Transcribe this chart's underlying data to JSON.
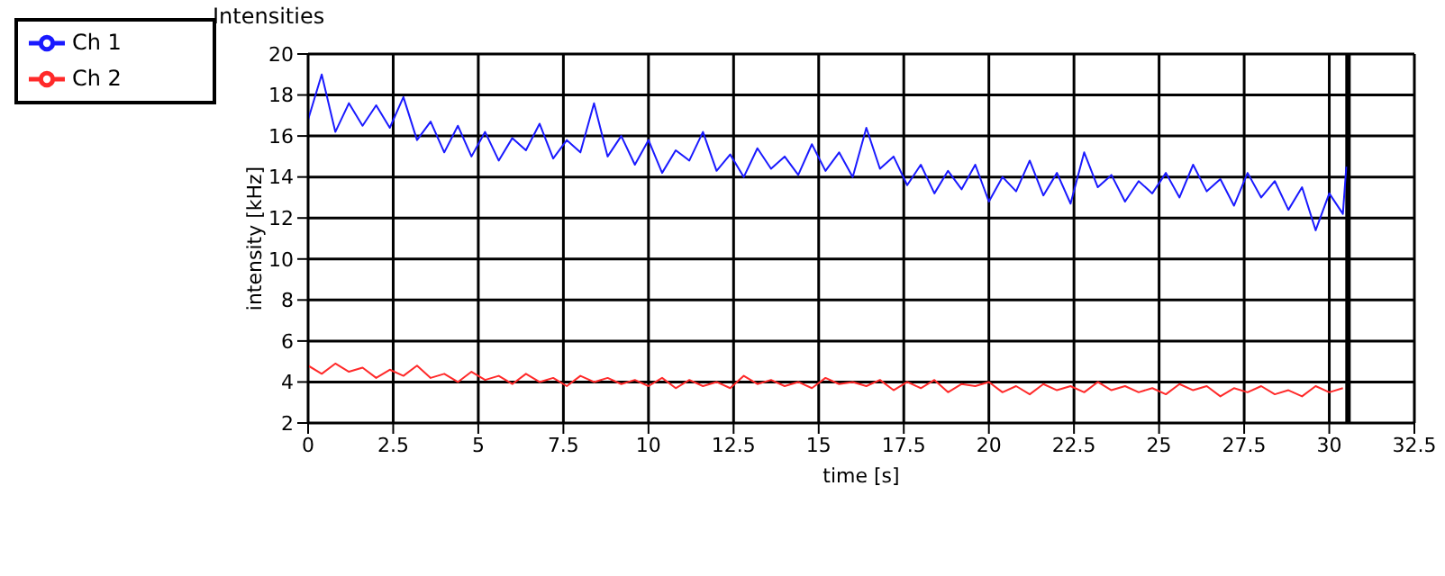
{
  "chart_data": {
    "type": "line",
    "title": "Intensities",
    "xlabel": "time [s]",
    "ylabel": "intensity [kHz]",
    "xlim": [
      0,
      32.5
    ],
    "xticks": [
      0,
      2.5,
      5,
      7.5,
      10,
      12.5,
      15,
      17.5,
      20,
      22.5,
      25,
      27.5,
      30,
      32.5
    ],
    "ylim": [
      2,
      20
    ],
    "yticks": [
      2,
      4,
      6,
      8,
      10,
      12,
      14,
      16,
      18,
      20
    ],
    "grid": true,
    "legend": "top left",
    "ref_lines": [
      {
        "axis": "x",
        "value": 30.55,
        "color": "#000000"
      }
    ],
    "series": [
      {
        "name": "Ch 1",
        "color": "#1a1aff",
        "x": [
          0,
          0.4,
          0.8,
          1.2,
          1.6,
          2,
          2.4,
          2.8,
          3.2,
          3.6,
          4,
          4.4,
          4.8,
          5.2,
          5.6,
          6,
          6.4,
          6.8,
          7.2,
          7.6,
          8,
          8.4,
          8.8,
          9.2,
          9.6,
          10,
          10.4,
          10.8,
          11.2,
          11.6,
          12,
          12.4,
          12.8,
          13.2,
          13.6,
          14,
          14.4,
          14.8,
          15.2,
          15.6,
          16,
          16.4,
          16.8,
          17.2,
          17.6,
          18,
          18.4,
          18.8,
          19.2,
          19.6,
          20,
          20.4,
          20.8,
          21.2,
          21.6,
          22,
          22.4,
          22.8,
          23.2,
          23.6,
          24,
          24.4,
          24.8,
          25.2,
          25.6,
          26,
          26.4,
          26.8,
          27.2,
          27.6,
          28,
          28.4,
          28.8,
          29.2,
          29.6,
          30,
          30.4,
          30.5
        ],
        "values": [
          16.8,
          19.0,
          16.2,
          17.6,
          16.5,
          17.5,
          16.4,
          17.9,
          15.8,
          16.7,
          15.2,
          16.5,
          15.0,
          16.2,
          14.8,
          15.9,
          15.3,
          16.6,
          14.9,
          15.8,
          15.2,
          17.6,
          15.0,
          16.0,
          14.6,
          15.8,
          14.2,
          15.3,
          14.8,
          16.2,
          14.3,
          15.1,
          14.0,
          15.4,
          14.4,
          15.0,
          14.1,
          15.6,
          14.3,
          15.2,
          14.0,
          16.4,
          14.4,
          15.0,
          13.6,
          14.6,
          13.2,
          14.3,
          13.4,
          14.6,
          12.8,
          14.0,
          13.3,
          14.8,
          13.1,
          14.2,
          12.7,
          15.2,
          13.5,
          14.1,
          12.8,
          13.8,
          13.2,
          14.2,
          13.0,
          14.6,
          13.3,
          13.9,
          12.6,
          14.2,
          13.0,
          13.8,
          12.4,
          13.5,
          11.4,
          13.2,
          12.2,
          14.5
        ]
      },
      {
        "name": "Ch 2",
        "color": "#ff2a2a",
        "x": [
          0,
          0.4,
          0.8,
          1.2,
          1.6,
          2,
          2.4,
          2.8,
          3.2,
          3.6,
          4,
          4.4,
          4.8,
          5.2,
          5.6,
          6,
          6.4,
          6.8,
          7.2,
          7.6,
          8,
          8.4,
          8.8,
          9.2,
          9.6,
          10,
          10.4,
          10.8,
          11.2,
          11.6,
          12,
          12.4,
          12.8,
          13.2,
          13.6,
          14,
          14.4,
          14.8,
          15.2,
          15.6,
          16,
          16.4,
          16.8,
          17.2,
          17.6,
          18,
          18.4,
          18.8,
          19.2,
          19.6,
          20,
          20.4,
          20.8,
          21.2,
          21.6,
          22,
          22.4,
          22.8,
          23.2,
          23.6,
          24,
          24.4,
          24.8,
          25.2,
          25.6,
          26,
          26.4,
          26.8,
          27.2,
          27.6,
          28,
          28.4,
          28.8,
          29.2,
          29.6,
          30,
          30.4
        ],
        "values": [
          4.8,
          4.4,
          4.9,
          4.5,
          4.7,
          4.2,
          4.6,
          4.3,
          4.8,
          4.2,
          4.4,
          4.0,
          4.5,
          4.1,
          4.3,
          3.9,
          4.4,
          4.0,
          4.2,
          3.8,
          4.3,
          4.0,
          4.2,
          3.9,
          4.1,
          3.8,
          4.2,
          3.7,
          4.1,
          3.8,
          4.0,
          3.7,
          4.3,
          3.9,
          4.1,
          3.8,
          4.0,
          3.7,
          4.2,
          3.9,
          4.0,
          3.8,
          4.1,
          3.6,
          4.0,
          3.7,
          4.1,
          3.5,
          3.9,
          3.8,
          4.0,
          3.5,
          3.8,
          3.4,
          3.9,
          3.6,
          3.8,
          3.5,
          4.0,
          3.6,
          3.8,
          3.5,
          3.7,
          3.4,
          3.9,
          3.6,
          3.8,
          3.3,
          3.7,
          3.5,
          3.8,
          3.4,
          3.6,
          3.3,
          3.8,
          3.5,
          3.7
        ]
      }
    ]
  }
}
